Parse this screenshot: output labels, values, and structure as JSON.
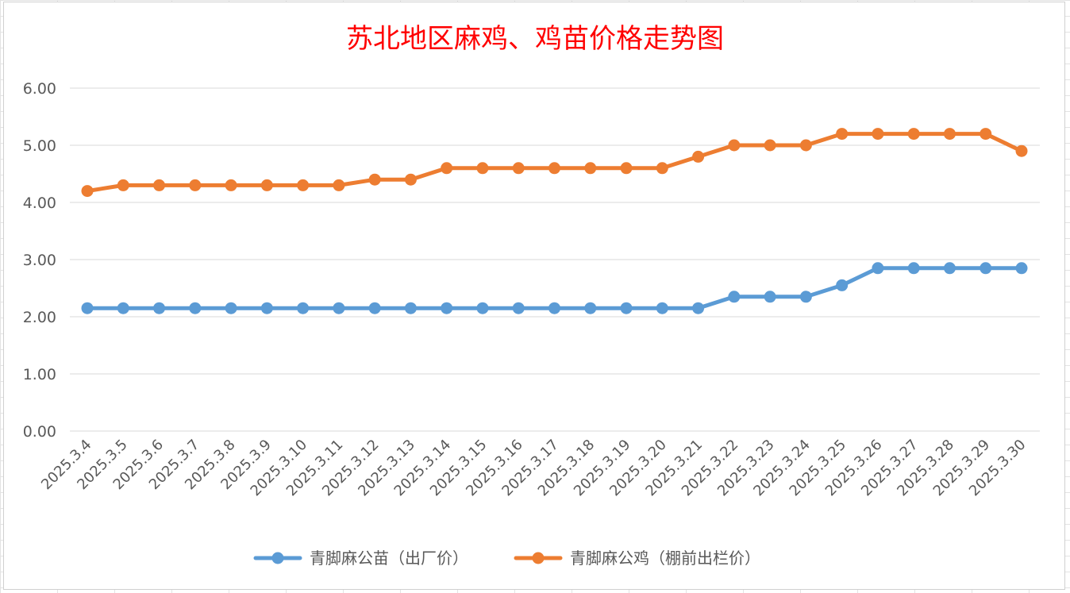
{
  "chart_data": {
    "type": "line",
    "title": "苏北地区麻鸡、鸡苗价格走势图",
    "xlabel": "",
    "ylabel": "",
    "ylim": [
      0,
      6
    ],
    "yticks": [
      "0.00",
      "1.00",
      "2.00",
      "3.00",
      "4.00",
      "5.00",
      "6.00"
    ],
    "grid": true,
    "legend": "bottom",
    "categories": [
      "2025.3.4",
      "2025.3.5",
      "2025.3.6",
      "2025.3.7",
      "2025.3.8",
      "2025.3.9",
      "2025.3.10",
      "2025.3.11",
      "2025.3.12",
      "2025.3.13",
      "2025.3.14",
      "2025.3.15",
      "2025.3.16",
      "2025.3.17",
      "2025.3.18",
      "2025.3.19",
      "2025.3.20",
      "2025.3.21",
      "2025.3.22",
      "2025.3.23",
      "2025.3.24",
      "2025.3.25",
      "2025.3.26",
      "2025.3.27",
      "2025.3.28",
      "2025.3.29",
      "2025.3.30"
    ],
    "series": [
      {
        "name": "青脚麻公苗（出厂价）",
        "color": "#5b9bd5",
        "values": [
          2.15,
          2.15,
          2.15,
          2.15,
          2.15,
          2.15,
          2.15,
          2.15,
          2.15,
          2.15,
          2.15,
          2.15,
          2.15,
          2.15,
          2.15,
          2.15,
          2.15,
          2.15,
          2.35,
          2.35,
          2.35,
          2.55,
          2.85,
          2.85,
          2.85,
          2.85,
          2.85
        ]
      },
      {
        "name": "青脚麻公鸡（棚前出栏价）",
        "color": "#ed7d31",
        "values": [
          4.2,
          4.3,
          4.3,
          4.3,
          4.3,
          4.3,
          4.3,
          4.3,
          4.4,
          4.4,
          4.6,
          4.6,
          4.6,
          4.6,
          4.6,
          4.6,
          4.6,
          4.8,
          5.0,
          5.0,
          5.0,
          5.2,
          5.2,
          5.2,
          5.2,
          5.2,
          4.9
        ]
      }
    ]
  }
}
